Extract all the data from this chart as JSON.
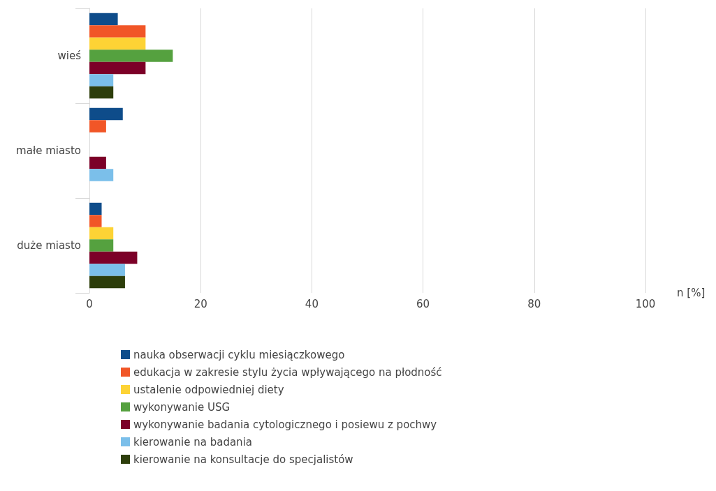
{
  "chart_data": {
    "type": "bar",
    "orientation": "horizontal",
    "categories": [
      "wieś",
      "małe miasto",
      "duże miasto"
    ],
    "xlabel": "n [%]",
    "xlim": [
      0,
      100
    ],
    "xticks": [
      0,
      20,
      40,
      60,
      80,
      100
    ],
    "grid": "x",
    "legend": "bottom",
    "series": [
      {
        "name": "nauka obserwacji cyklu miesiączkowego",
        "color": "#0e4c8a",
        "values": [
          5.1,
          6.0,
          2.2
        ]
      },
      {
        "name": "edukacja w zakresie stylu życia wpływającego na płodność",
        "color": "#f15627",
        "values": [
          10.1,
          3.0,
          2.2
        ]
      },
      {
        "name": "ustalenie odpowiedniej diety",
        "color": "#fdd335",
        "values": [
          10.1,
          0,
          4.3
        ]
      },
      {
        "name": "wykonywanie USG",
        "color": "#55a13f",
        "values": [
          15.0,
          0,
          4.3
        ]
      },
      {
        "name": "wykonywanie badania cytologicznego i posiewu z pochwy",
        "color": "#7c0028",
        "values": [
          10.1,
          3.0,
          8.6
        ]
      },
      {
        "name": "kierowanie na badania",
        "color": "#7bbfea",
        "values": [
          4.3,
          4.3,
          6.4
        ]
      },
      {
        "name": "kierowanie na konsultacje do specjalistów",
        "color": "#2d3e0b",
        "values": [
          4.3,
          0,
          6.4
        ]
      }
    ]
  }
}
